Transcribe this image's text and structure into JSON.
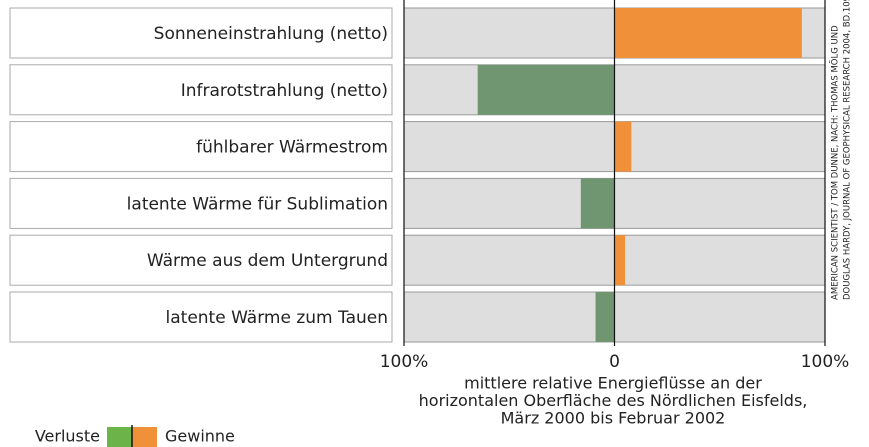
{
  "chart_data": {
    "type": "bar",
    "orientation": "horizontal",
    "categories": [
      "Sonneneinstrahlung (netto)",
      "Infrarotstrahlung (netto)",
      "fühlbarer Wärmestrom",
      "latente Wärme für Sublimation",
      "Wärme aus dem Untergrund",
      "latente Wärme zum Tauen"
    ],
    "values": [
      89,
      -65,
      8,
      -16,
      5,
      -9
    ],
    "colors": [
      "#f0913a",
      "#6f9670",
      "#f0913a",
      "#6f9670",
      "#f0913a",
      "#6f9670"
    ],
    "xlim": [
      -100,
      100
    ],
    "xticks": [
      {
        "value": -100,
        "label": "100%"
      },
      0,
      {
        "value": 100,
        "label": "100%"
      }
    ],
    "x_label": [
      "mittlere relative Energieflüsse an der",
      "horizontalen Oberfläche des Nördlichen Eisfelds,",
      "März 2000 bis Februar 2002"
    ],
    "legend": {
      "labels": [
        "Verluste",
        "Gewinne"
      ],
      "colors": [
        "#6cb44a",
        "#f0913a"
      ]
    },
    "credit": [
      "AMERICAN SCIENTIST / TOM DUNNE, NACH: THOMAS MÖLG UND",
      "DOUGLAS HARDY, JOURNAL OF GEOPHYSICAL RESEARCH 2004, BD.109"
    ]
  }
}
